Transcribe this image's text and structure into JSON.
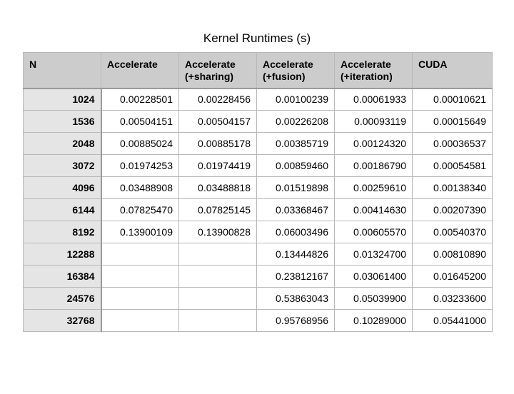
{
  "title": "Kernel Runtimes (s)",
  "table": {
    "headers": [
      {
        "line1": "N",
        "line2": ""
      },
      {
        "line1": "Accelerate",
        "line2": ""
      },
      {
        "line1": "Accelerate",
        "line2": "(+sharing)"
      },
      {
        "line1": "Accelerate",
        "line2": "(+fusion)"
      },
      {
        "line1": "Accelerate",
        "line2": "(+iteration)"
      },
      {
        "line1": "CUDA",
        "line2": ""
      }
    ],
    "rows": [
      {
        "n": "1024",
        "cells": [
          "0.00228501",
          "0.00228456",
          "0.00100239",
          "0.00061933",
          "0.00010621"
        ]
      },
      {
        "n": "1536",
        "cells": [
          "0.00504151",
          "0.00504157",
          "0.00226208",
          "0.00093119",
          "0.00015649"
        ]
      },
      {
        "n": "2048",
        "cells": [
          "0.00885024",
          "0.00885178",
          "0.00385719",
          "0.00124320",
          "0.00036537"
        ]
      },
      {
        "n": "3072",
        "cells": [
          "0.01974253",
          "0.01974419",
          "0.00859460",
          "0.00186790",
          "0.00054581"
        ]
      },
      {
        "n": "4096",
        "cells": [
          "0.03488908",
          "0.03488818",
          "0.01519898",
          "0.00259610",
          "0.00138340"
        ]
      },
      {
        "n": "6144",
        "cells": [
          "0.07825470",
          "0.07825145",
          "0.03368467",
          "0.00414630",
          "0.00207390"
        ]
      },
      {
        "n": "8192",
        "cells": [
          "0.13900109",
          "0.13900828",
          "0.06003496",
          "0.00605570",
          "0.00540370"
        ]
      },
      {
        "n": "12288",
        "cells": [
          "",
          "",
          "0.13444826",
          "0.01324700",
          "0.00810890"
        ]
      },
      {
        "n": "16384",
        "cells": [
          "",
          "",
          "0.23812167",
          "0.03061400",
          "0.01645200"
        ]
      },
      {
        "n": "24576",
        "cells": [
          "",
          "",
          "0.53863043",
          "0.05039900",
          "0.03233600"
        ]
      },
      {
        "n": "32768",
        "cells": [
          "",
          "",
          "0.95768956",
          "0.10289000",
          "0.05441000"
        ]
      }
    ]
  }
}
